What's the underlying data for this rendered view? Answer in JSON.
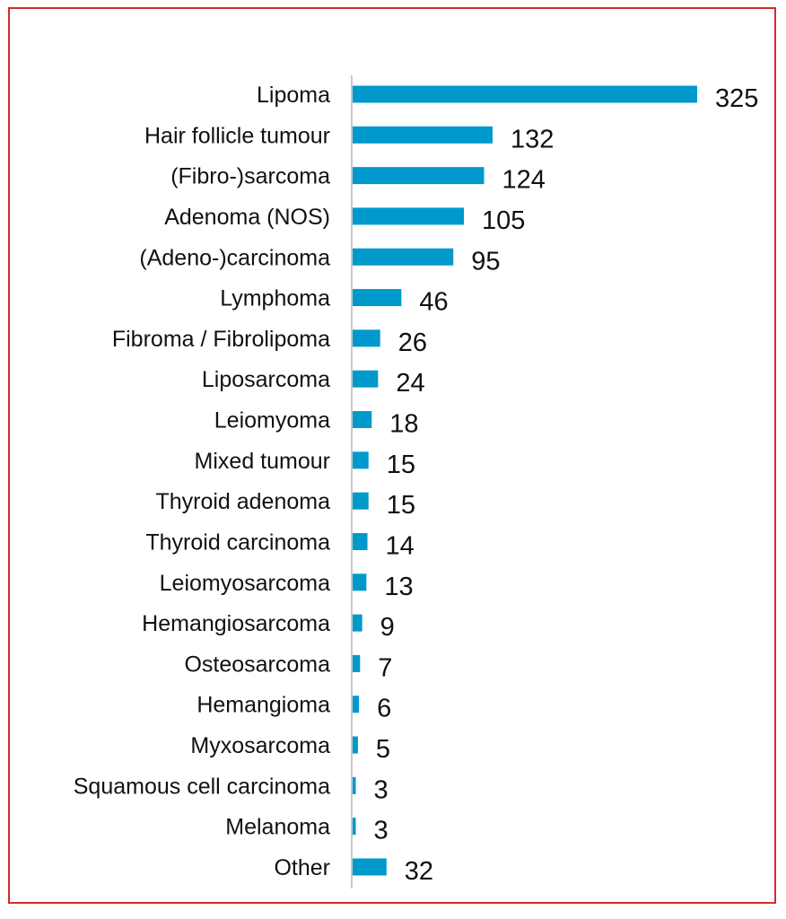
{
  "chart_data": {
    "type": "bar",
    "orientation": "horizontal",
    "categories": [
      "Lipoma",
      "Hair follicle tumour",
      "(Fibro-)sarcoma",
      "Adenoma (NOS)",
      "(Adeno-)carcinoma",
      "Lymphoma",
      "Fibroma / Fibrolipoma",
      "Liposarcoma",
      "Leiomyoma",
      "Mixed tumour",
      "Thyroid adenoma",
      "Thyroid carcinoma",
      "Leiomyosarcoma",
      "Hemangiosarcoma",
      "Osteosarcoma",
      "Hemangioma",
      "Myxosarcoma",
      "Squamous cell carcinoma",
      "Melanoma",
      "Other"
    ],
    "values": [
      325,
      132,
      124,
      105,
      95,
      46,
      26,
      24,
      18,
      15,
      15,
      14,
      13,
      9,
      7,
      6,
      5,
      3,
      3,
      32
    ],
    "title": "",
    "xlabel": "",
    "ylabel": "",
    "xlim": [
      0,
      325
    ],
    "grid": false,
    "data_labels": true,
    "colors": {
      "bar": "#0099cc",
      "axis": "#c8c8c8",
      "frame": "#d42a2a",
      "text": "#111111"
    }
  }
}
